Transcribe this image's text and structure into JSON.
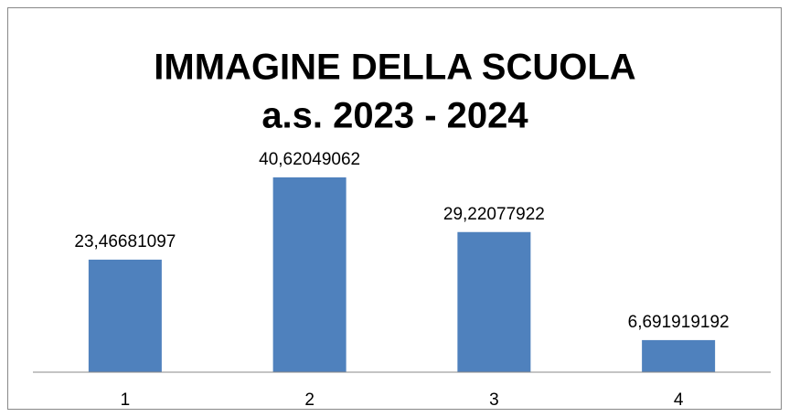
{
  "chart_data": {
    "type": "bar",
    "title": "IMMAGINE DELLA SCUOLA",
    "subtitle": "a.s. 2023 - 2024",
    "categories": [
      "1",
      "2",
      "3",
      "4"
    ],
    "values": [
      23.46681097,
      40.62049062,
      29.22077922,
      6.691919192
    ],
    "value_labels": [
      "23,46681097",
      "40,62049062",
      "29,22077922",
      "6,691919192"
    ],
    "color": "#4f81bd",
    "ylim": [
      0,
      45
    ]
  }
}
